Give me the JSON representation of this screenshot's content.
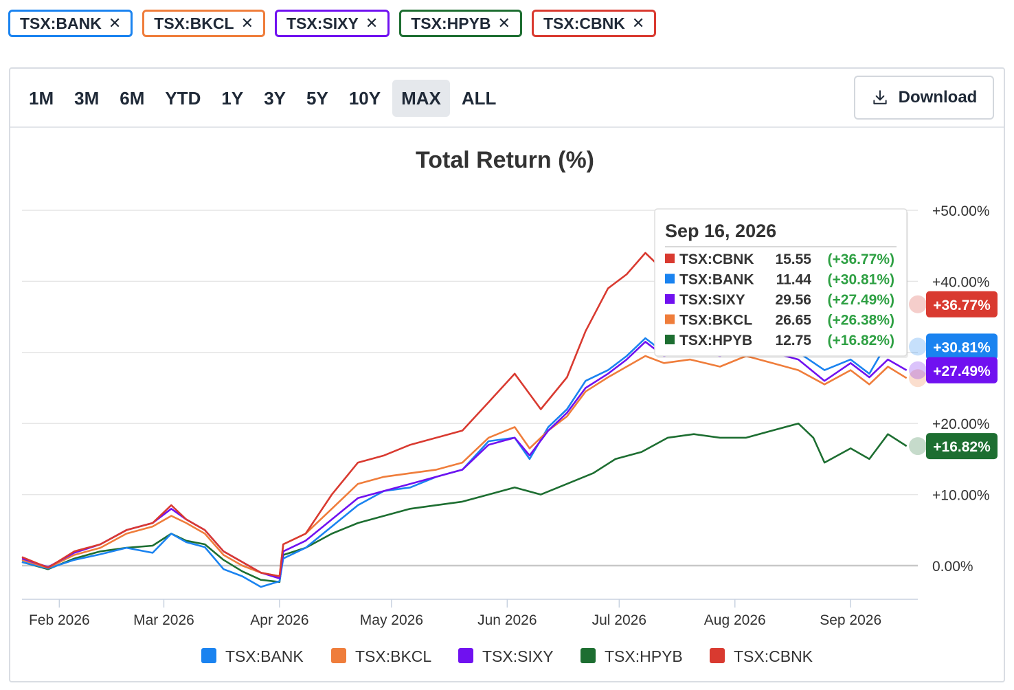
{
  "chips": [
    {
      "label": "TSX:BANK",
      "color": "#1a83f0"
    },
    {
      "label": "TSX:BKCL",
      "color": "#ef7d3b"
    },
    {
      "label": "TSX:SIXY",
      "color": "#7011f0"
    },
    {
      "label": "TSX:HPYB",
      "color": "#1d6e31"
    },
    {
      "label": "TSX:CBNK",
      "color": "#d93a30"
    }
  ],
  "chip_close_glyph": "✕",
  "toolbar": {
    "ranges": [
      "1M",
      "3M",
      "6M",
      "YTD",
      "1Y",
      "3Y",
      "5Y",
      "10Y",
      "MAX",
      "ALL"
    ],
    "active_range": "MAX",
    "download_label": "Download"
  },
  "tooltip": {
    "date": "Sep 16, 2026",
    "rows": [
      {
        "name": "TSX:CBNK",
        "price": "15.55",
        "change": "(+36.77%)",
        "color": "#d93a30"
      },
      {
        "name": "TSX:BANK",
        "price": "11.44",
        "change": "(+30.81%)",
        "color": "#1a83f0"
      },
      {
        "name": "TSX:SIXY",
        "price": "29.56",
        "change": "(+27.49%)",
        "color": "#7011f0"
      },
      {
        "name": "TSX:BKCL",
        "price": "26.65",
        "change": "(+26.38%)",
        "color": "#ef7d3b"
      },
      {
        "name": "TSX:HPYB",
        "price": "12.75",
        "change": "(+16.82%)",
        "color": "#1d6e31"
      }
    ]
  },
  "chart_data": {
    "type": "line",
    "title": "Total Return (%)",
    "y_ticks": [
      0,
      10,
      20,
      40,
      50
    ],
    "y_tick_labels": [
      "0.00%",
      "+10.00%",
      "+20.00%",
      "+40.00%",
      "+50.00%"
    ],
    "ylim": [
      -5,
      50
    ],
    "x_ticks": [
      "2026-02-01",
      "2026-03-01",
      "2026-04-01",
      "2026-05-01",
      "2026-06-01",
      "2026-07-01",
      "2026-08-01",
      "2026-09-01"
    ],
    "x_tick_labels": [
      "Feb 2026",
      "Mar 2026",
      "Apr 2026",
      "May 2026",
      "Jun 2026",
      "Jul 2026",
      "Aug 2026",
      "Sep 2026"
    ],
    "xlim": [
      "2026-01-22",
      "2026-09-19"
    ],
    "grid": true,
    "legend_position": "bottom",
    "end_labels": [
      {
        "series": "TSX:CBNK",
        "label": "+36.77%"
      },
      {
        "series": "TSX:BANK",
        "label": "+30.81%"
      },
      {
        "series": "TSX:SIXY",
        "label": "+27.49%"
      },
      {
        "series": "TSX:HPYB",
        "label": "+16.82%"
      }
    ],
    "series": [
      {
        "name": "TSX:BANK",
        "color": "#1a83f0",
        "points": [
          [
            "2026-01-22",
            0.5
          ],
          [
            "2026-01-29",
            -0.4
          ],
          [
            "2026-02-05",
            0.8
          ],
          [
            "2026-02-12",
            1.6
          ],
          [
            "2026-02-19",
            2.5
          ],
          [
            "2026-02-26",
            1.8
          ],
          [
            "2026-03-03",
            4.5
          ],
          [
            "2026-03-07",
            3.3
          ],
          [
            "2026-03-12",
            2.6
          ],
          [
            "2026-03-17",
            -0.5
          ],
          [
            "2026-03-22",
            -1.5
          ],
          [
            "2026-03-27",
            -3.0
          ],
          [
            "2026-04-01",
            -2.2
          ],
          [
            "2026-04-02",
            1.0
          ],
          [
            "2026-04-08",
            2.5
          ],
          [
            "2026-04-15",
            5.5
          ],
          [
            "2026-04-22",
            8.5
          ],
          [
            "2026-04-29",
            10.5
          ],
          [
            "2026-05-06",
            11.0
          ],
          [
            "2026-05-13",
            12.5
          ],
          [
            "2026-05-20",
            13.5
          ],
          [
            "2026-05-27",
            17.5
          ],
          [
            "2026-06-03",
            18.0
          ],
          [
            "2026-06-07",
            15.0
          ],
          [
            "2026-06-12",
            19.5
          ],
          [
            "2026-06-17",
            22.0
          ],
          [
            "2026-06-22",
            26.0
          ],
          [
            "2026-06-28",
            27.5
          ],
          [
            "2026-07-03",
            29.5
          ],
          [
            "2026-07-08",
            32.0
          ],
          [
            "2026-07-13",
            30.0
          ],
          [
            "2026-07-20",
            31.5
          ],
          [
            "2026-07-28",
            31.0
          ],
          [
            "2026-08-04",
            32.0
          ],
          [
            "2026-08-11",
            31.0
          ],
          [
            "2026-08-18",
            30.0
          ],
          [
            "2026-08-25",
            27.5
          ],
          [
            "2026-09-01",
            29.0
          ],
          [
            "2026-09-06",
            27.0
          ],
          [
            "2026-09-11",
            31.5
          ],
          [
            "2026-09-16",
            30.81
          ]
        ]
      },
      {
        "name": "TSX:BKCL",
        "color": "#ef7d3b",
        "points": [
          [
            "2026-01-22",
            0.8
          ],
          [
            "2026-01-29",
            -0.3
          ],
          [
            "2026-02-05",
            1.5
          ],
          [
            "2026-02-12",
            2.5
          ],
          [
            "2026-02-19",
            4.5
          ],
          [
            "2026-02-26",
            5.5
          ],
          [
            "2026-03-03",
            7.0
          ],
          [
            "2026-03-07",
            6.0
          ],
          [
            "2026-03-12",
            4.5
          ],
          [
            "2026-03-17",
            1.5
          ],
          [
            "2026-03-22",
            0.0
          ],
          [
            "2026-03-27",
            -1.0
          ],
          [
            "2026-04-01",
            -1.5
          ],
          [
            "2026-04-02",
            3.0
          ],
          [
            "2026-04-08",
            4.5
          ],
          [
            "2026-04-15",
            8.0
          ],
          [
            "2026-04-22",
            11.5
          ],
          [
            "2026-04-29",
            12.5
          ],
          [
            "2026-05-06",
            13.0
          ],
          [
            "2026-05-13",
            13.5
          ],
          [
            "2026-05-20",
            14.5
          ],
          [
            "2026-05-27",
            18.0
          ],
          [
            "2026-06-03",
            19.5
          ],
          [
            "2026-06-07",
            16.5
          ],
          [
            "2026-06-12",
            19.0
          ],
          [
            "2026-06-17",
            21.0
          ],
          [
            "2026-06-22",
            24.5
          ],
          [
            "2026-06-28",
            26.5
          ],
          [
            "2026-07-03",
            28.0
          ],
          [
            "2026-07-08",
            29.5
          ],
          [
            "2026-07-13",
            28.5
          ],
          [
            "2026-07-20",
            29.0
          ],
          [
            "2026-07-28",
            28.0
          ],
          [
            "2026-08-04",
            29.5
          ],
          [
            "2026-08-11",
            28.5
          ],
          [
            "2026-08-18",
            27.5
          ],
          [
            "2026-08-25",
            25.5
          ],
          [
            "2026-09-01",
            27.5
          ],
          [
            "2026-09-06",
            25.5
          ],
          [
            "2026-09-11",
            28.0
          ],
          [
            "2026-09-16",
            26.38
          ]
        ]
      },
      {
        "name": "TSX:SIXY",
        "color": "#7011f0",
        "points": [
          [
            "2026-01-22",
            1.0
          ],
          [
            "2026-01-29",
            -0.2
          ],
          [
            "2026-02-05",
            1.8
          ],
          [
            "2026-02-12",
            3.0
          ],
          [
            "2026-02-19",
            5.0
          ],
          [
            "2026-02-26",
            6.0
          ],
          [
            "2026-03-03",
            8.0
          ],
          [
            "2026-03-07",
            6.5
          ],
          [
            "2026-03-12",
            5.0
          ],
          [
            "2026-03-17",
            2.0
          ],
          [
            "2026-03-22",
            0.5
          ],
          [
            "2026-03-27",
            -1.0
          ],
          [
            "2026-04-01",
            -1.8
          ],
          [
            "2026-04-02",
            2.0
          ],
          [
            "2026-04-08",
            3.5
          ],
          [
            "2026-04-15",
            6.5
          ],
          [
            "2026-04-22",
            9.5
          ],
          [
            "2026-04-29",
            10.5
          ],
          [
            "2026-05-06",
            11.5
          ],
          [
            "2026-05-13",
            12.5
          ],
          [
            "2026-05-20",
            13.5
          ],
          [
            "2026-05-27",
            17.0
          ],
          [
            "2026-06-03",
            18.0
          ],
          [
            "2026-06-07",
            15.5
          ],
          [
            "2026-06-12",
            19.0
          ],
          [
            "2026-06-17",
            21.5
          ],
          [
            "2026-06-22",
            25.0
          ],
          [
            "2026-06-28",
            27.0
          ],
          [
            "2026-07-03",
            29.0
          ],
          [
            "2026-07-08",
            31.5
          ],
          [
            "2026-07-13",
            29.5
          ],
          [
            "2026-07-20",
            30.5
          ],
          [
            "2026-07-28",
            29.5
          ],
          [
            "2026-08-04",
            31.0
          ],
          [
            "2026-08-11",
            30.0
          ],
          [
            "2026-08-18",
            29.0
          ],
          [
            "2026-08-25",
            26.0
          ],
          [
            "2026-09-01",
            28.5
          ],
          [
            "2026-09-06",
            26.5
          ],
          [
            "2026-09-11",
            29.0
          ],
          [
            "2026-09-16",
            27.49
          ]
        ]
      },
      {
        "name": "TSX:HPYB",
        "color": "#1d6e31",
        "points": [
          [
            "2026-01-22",
            0.5
          ],
          [
            "2026-01-29",
            -0.5
          ],
          [
            "2026-02-05",
            1.0
          ],
          [
            "2026-02-12",
            2.0
          ],
          [
            "2026-02-19",
            2.5
          ],
          [
            "2026-02-26",
            2.8
          ],
          [
            "2026-03-03",
            4.5
          ],
          [
            "2026-03-07",
            3.5
          ],
          [
            "2026-03-12",
            3.0
          ],
          [
            "2026-03-17",
            0.8
          ],
          [
            "2026-03-22",
            -0.8
          ],
          [
            "2026-03-27",
            -2.0
          ],
          [
            "2026-04-01",
            -2.3
          ],
          [
            "2026-04-02",
            1.5
          ],
          [
            "2026-04-08",
            2.5
          ],
          [
            "2026-04-15",
            4.5
          ],
          [
            "2026-04-22",
            6.0
          ],
          [
            "2026-04-29",
            7.0
          ],
          [
            "2026-05-06",
            8.0
          ],
          [
            "2026-05-13",
            8.5
          ],
          [
            "2026-05-20",
            9.0
          ],
          [
            "2026-05-27",
            10.0
          ],
          [
            "2026-06-03",
            11.0
          ],
          [
            "2026-06-10",
            10.0
          ],
          [
            "2026-06-17",
            11.5
          ],
          [
            "2026-06-24",
            13.0
          ],
          [
            "2026-06-30",
            15.0
          ],
          [
            "2026-07-07",
            16.0
          ],
          [
            "2026-07-14",
            18.0
          ],
          [
            "2026-07-21",
            18.5
          ],
          [
            "2026-07-28",
            18.0
          ],
          [
            "2026-08-04",
            18.0
          ],
          [
            "2026-08-11",
            19.0
          ],
          [
            "2026-08-18",
            20.0
          ],
          [
            "2026-08-22",
            18.0
          ],
          [
            "2026-08-25",
            14.5
          ],
          [
            "2026-09-01",
            16.5
          ],
          [
            "2026-09-06",
            15.0
          ],
          [
            "2026-09-11",
            18.5
          ],
          [
            "2026-09-16",
            16.82
          ]
        ]
      },
      {
        "name": "TSX:CBNK",
        "color": "#d93a30",
        "points": [
          [
            "2026-01-22",
            1.2
          ],
          [
            "2026-01-29",
            -0.3
          ],
          [
            "2026-02-05",
            2.0
          ],
          [
            "2026-02-12",
            3.0
          ],
          [
            "2026-02-19",
            5.0
          ],
          [
            "2026-02-26",
            6.0
          ],
          [
            "2026-03-03",
            8.5
          ],
          [
            "2026-03-07",
            6.5
          ],
          [
            "2026-03-12",
            5.0
          ],
          [
            "2026-03-17",
            2.0
          ],
          [
            "2026-03-22",
            0.5
          ],
          [
            "2026-03-27",
            -1.0
          ],
          [
            "2026-04-01",
            -1.5
          ],
          [
            "2026-04-02",
            3.0
          ],
          [
            "2026-04-08",
            4.5
          ],
          [
            "2026-04-15",
            10.0
          ],
          [
            "2026-04-22",
            14.5
          ],
          [
            "2026-04-29",
            15.5
          ],
          [
            "2026-05-06",
            17.0
          ],
          [
            "2026-05-13",
            18.0
          ],
          [
            "2026-05-20",
            19.0
          ],
          [
            "2026-05-27",
            23.0
          ],
          [
            "2026-06-03",
            27.0
          ],
          [
            "2026-06-10",
            22.0
          ],
          [
            "2026-06-17",
            26.5
          ],
          [
            "2026-06-22",
            33.0
          ],
          [
            "2026-06-28",
            39.0
          ],
          [
            "2026-07-03",
            41.0
          ],
          [
            "2026-07-08",
            44.0
          ],
          [
            "2026-07-13",
            41.5
          ],
          [
            "2026-07-20",
            40.0
          ],
          [
            "2026-07-28",
            37.5
          ],
          [
            "2026-08-04",
            38.5
          ],
          [
            "2026-08-11",
            38.5
          ],
          [
            "2026-08-18",
            38.0
          ],
          [
            "2026-08-25",
            35.0
          ],
          [
            "2026-09-01",
            37.5
          ],
          [
            "2026-09-06",
            36.0
          ],
          [
            "2026-09-11",
            38.5
          ],
          [
            "2026-09-16",
            36.77
          ]
        ]
      }
    ]
  }
}
